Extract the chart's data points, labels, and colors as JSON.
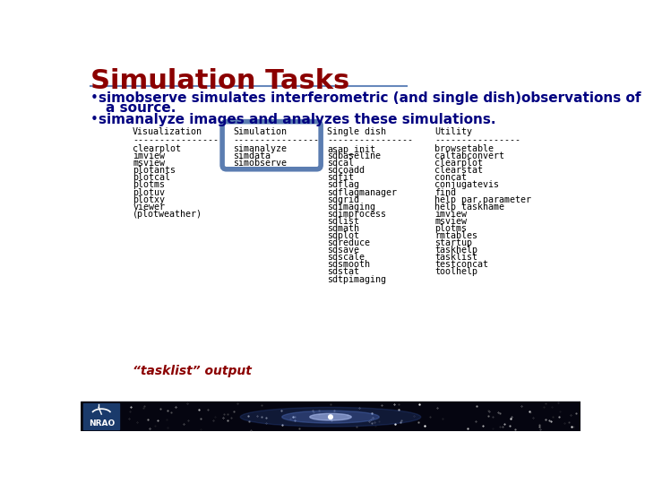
{
  "title": "Simulation Tasks",
  "title_color": "#8B0000",
  "title_underline_color": "#6688BB",
  "background_color": "#FFFFFF",
  "bullet_color": "#000080",
  "bullet_text_color": "#000080",
  "table_header": [
    "Visualization",
    "Simulation",
    "Single dish",
    "Utility"
  ],
  "table_col1": [
    "clearplot",
    "imview",
    "msview",
    "plotants",
    "plotcal",
    "plotms",
    "plotuv",
    "plotxy",
    "viewer",
    "(plotweather)"
  ],
  "table_col2": [
    "simanalyze",
    "simdata",
    "simobserve"
  ],
  "table_col3": [
    "asap_init",
    "sdbaseline",
    "sdcal",
    "sdcoadd",
    "sdfit",
    "sdflag",
    "sdflagmanager",
    "sdgrid",
    "sdimaging",
    "sdimprocess",
    "sdlist",
    "sdmath",
    "sdplot",
    "sdreduce",
    "sdsave",
    "sdscale",
    "sdsmooth",
    "sdstat",
    "sdtpimaging"
  ],
  "table_col4": [
    "browsetable",
    "caltabconvert",
    "clearplot",
    "clearstat",
    "concat",
    "conjugatevis",
    "find",
    "help par.parameter",
    "help taskname",
    "imview",
    "msview",
    "plotms",
    "rmtables",
    "startup",
    "taskhelp",
    "tasklist",
    "testconcat",
    "toolhelp"
  ],
  "footer_text": "“tasklist” output",
  "footer_text_color": "#8B0000",
  "box_color": "#5B7DB1",
  "bottom_bar_height": 42,
  "nrao_bg_color": "#1a3a6b"
}
